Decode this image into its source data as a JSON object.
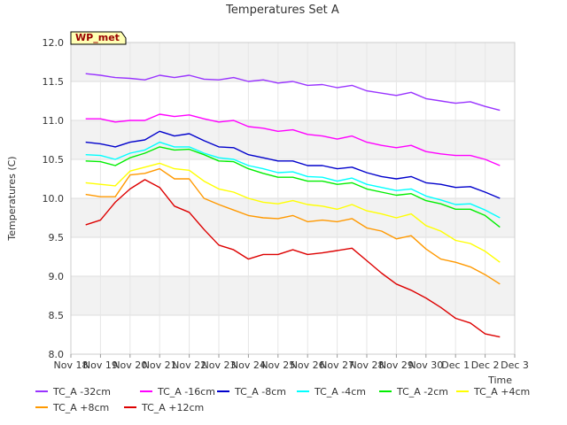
{
  "chart_data": {
    "type": "line",
    "title": "Temperatures Set A",
    "xlabel": "Time",
    "ylabel": "Temperatures (C)",
    "ylim": [
      8.0,
      12.0
    ],
    "yticks": [
      "8.0",
      "8.5",
      "9.0",
      "9.5",
      "10.0",
      "10.5",
      "11.0",
      "11.5",
      "12.0"
    ],
    "xticks": [
      "Nov 18",
      "Nov 19",
      "Nov 20",
      "Nov 21",
      "Nov 22",
      "Nov 23",
      "Nov 24",
      "Nov 25",
      "Nov 26",
      "Nov 27",
      "Nov 28",
      "Nov 29",
      "Nov 30",
      "Dec 1",
      "Dec 2",
      "Dec 3"
    ],
    "xlim": [
      "Nov 18",
      "Dec 3"
    ],
    "grid": true,
    "legend_position": "bottom",
    "annotation": "WP_met",
    "x": [
      "Nov 18.5",
      "Nov 19",
      "Nov 19.5",
      "Nov 20",
      "Nov 20.5",
      "Nov 21",
      "Nov 21.5",
      "Nov 22",
      "Nov 22.5",
      "Nov 23",
      "Nov 23.5",
      "Nov 24",
      "Nov 24.5",
      "Nov 25",
      "Nov 25.5",
      "Nov 26",
      "Nov 26.5",
      "Nov 27",
      "Nov 27.5",
      "Nov 28",
      "Nov 28.5",
      "Nov 29",
      "Nov 29.5",
      "Nov 30",
      "Nov 30.5",
      "Dec 1",
      "Dec 1.5",
      "Dec 2",
      "Dec 2.5"
    ],
    "series": [
      {
        "name": "TC_A -32cm",
        "color": "#9933ff",
        "values": [
          11.6,
          11.58,
          11.55,
          11.54,
          11.52,
          11.58,
          11.55,
          11.58,
          11.53,
          11.52,
          11.55,
          11.5,
          11.52,
          11.48,
          11.5,
          11.45,
          11.46,
          11.42,
          11.45,
          11.38,
          11.35,
          11.32,
          11.36,
          11.28,
          11.25,
          11.22,
          11.24,
          11.18,
          11.13
        ]
      },
      {
        "name": "TC_A -16cm",
        "color": "#ff00ff",
        "values": [
          11.02,
          11.02,
          10.98,
          11.0,
          11.0,
          11.08,
          11.05,
          11.07,
          11.02,
          10.98,
          11.0,
          10.92,
          10.9,
          10.86,
          10.88,
          10.82,
          10.8,
          10.76,
          10.8,
          10.72,
          10.68,
          10.65,
          10.68,
          10.6,
          10.57,
          10.55,
          10.55,
          10.5,
          10.42
        ]
      },
      {
        "name": "TC_A -8cm",
        "color": "#0000cc",
        "values": [
          10.72,
          10.7,
          10.66,
          10.72,
          10.75,
          10.86,
          10.8,
          10.83,
          10.74,
          10.66,
          10.65,
          10.56,
          10.52,
          10.48,
          10.48,
          10.42,
          10.42,
          10.38,
          10.4,
          10.33,
          10.28,
          10.25,
          10.28,
          10.2,
          10.18,
          10.14,
          10.15,
          10.08,
          10.0
        ]
      },
      {
        "name": "TC_A -4cm",
        "color": "#00ffff",
        "values": [
          10.56,
          10.55,
          10.5,
          10.58,
          10.62,
          10.72,
          10.66,
          10.66,
          10.58,
          10.52,
          10.5,
          10.42,
          10.38,
          10.33,
          10.34,
          10.28,
          10.27,
          10.22,
          10.26,
          10.18,
          10.14,
          10.1,
          10.12,
          10.03,
          9.98,
          9.92,
          9.93,
          9.85,
          9.75
        ]
      },
      {
        "name": "TC_A -2cm",
        "color": "#00ee00",
        "values": [
          10.48,
          10.47,
          10.42,
          10.52,
          10.58,
          10.66,
          10.62,
          10.63,
          10.56,
          10.48,
          10.47,
          10.38,
          10.32,
          10.27,
          10.27,
          10.22,
          10.22,
          10.18,
          10.2,
          10.12,
          10.08,
          10.04,
          10.06,
          9.97,
          9.93,
          9.86,
          9.86,
          9.78,
          9.63
        ]
      },
      {
        "name": "TC_A +4cm",
        "color": "#ffff00",
        "values": [
          10.2,
          10.18,
          10.16,
          10.35,
          10.4,
          10.45,
          10.38,
          10.36,
          10.22,
          10.12,
          10.08,
          10.0,
          9.95,
          9.93,
          9.97,
          9.92,
          9.9,
          9.86,
          9.92,
          9.84,
          9.8,
          9.75,
          9.8,
          9.65,
          9.58,
          9.46,
          9.42,
          9.32,
          9.18
        ]
      },
      {
        "name": "TC_A +8cm",
        "color": "#ff9900",
        "values": [
          10.05,
          10.02,
          10.02,
          10.3,
          10.32,
          10.38,
          10.25,
          10.25,
          10.0,
          9.92,
          9.85,
          9.78,
          9.75,
          9.74,
          9.78,
          9.7,
          9.72,
          9.7,
          9.74,
          9.62,
          9.58,
          9.48,
          9.52,
          9.35,
          9.22,
          9.18,
          9.12,
          9.02,
          8.9
        ]
      },
      {
        "name": "TC_A +12cm",
        "color": "#dd0000",
        "values": [
          9.66,
          9.72,
          9.95,
          10.12,
          10.24,
          10.14,
          9.9,
          9.82,
          9.6,
          9.4,
          9.34,
          9.22,
          9.28,
          9.28,
          9.34,
          9.28,
          9.3,
          9.33,
          9.36,
          9.2,
          9.04,
          8.9,
          8.82,
          8.72,
          8.6,
          8.46,
          8.4,
          8.26,
          8.22
        ]
      }
    ]
  }
}
